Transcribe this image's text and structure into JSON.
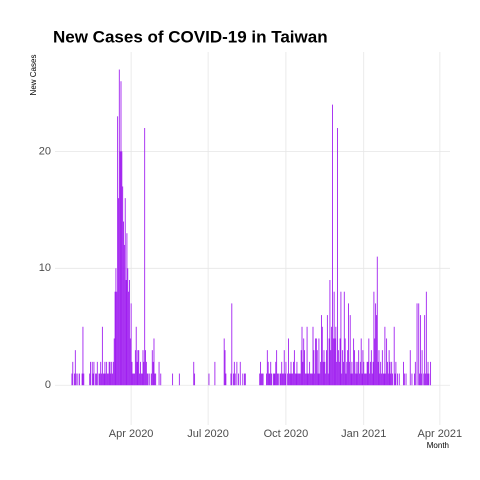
{
  "chart_data": {
    "type": "bar",
    "title": "New Cases of COVID-19 in Taiwan",
    "y_label": "New Cases",
    "x_label": "Month",
    "color": "#a020f0",
    "grid": true,
    "values": [
      0,
      1,
      2,
      0,
      1,
      3,
      1,
      0,
      1,
      0,
      1,
      0,
      0,
      1,
      5,
      1,
      0,
      0,
      0,
      0,
      0,
      0,
      1,
      2,
      0,
      2,
      1,
      2,
      0,
      1,
      1,
      2,
      0,
      1,
      1,
      2,
      1,
      5,
      1,
      1,
      2,
      1,
      2,
      1,
      1,
      2,
      2,
      1,
      2,
      1,
      2,
      4,
      8,
      10,
      8,
      23,
      16,
      27,
      20,
      26,
      20,
      17,
      14,
      12,
      16,
      9,
      13,
      10,
      8,
      9,
      4,
      7,
      2,
      1,
      1,
      1,
      3,
      5,
      2,
      3,
      3,
      1,
      2,
      1,
      1,
      3,
      2,
      22,
      3,
      2,
      1,
      1,
      0,
      1,
      0,
      1,
      3,
      2,
      4,
      1,
      1,
      0,
      0,
      0,
      2,
      0,
      1,
      0,
      0,
      0,
      0,
      0,
      0,
      0,
      0,
      0,
      0,
      0,
      0,
      0,
      1,
      0,
      0,
      0,
      0,
      0,
      0,
      0,
      1,
      0,
      0,
      0,
      0,
      0,
      0,
      0,
      0,
      0,
      0,
      0,
      0,
      0,
      0,
      0,
      0,
      2,
      1,
      0,
      0,
      0,
      0,
      0,
      0,
      0,
      0,
      0,
      0,
      0,
      0,
      0,
      0,
      0,
      0,
      1,
      0,
      0,
      0,
      0,
      0,
      0,
      2,
      0,
      0,
      0,
      0,
      0,
      0,
      0,
      0,
      0,
      0,
      4,
      3,
      1,
      0,
      0,
      0,
      0,
      0,
      1,
      7,
      0,
      1,
      2,
      1,
      0,
      2,
      0,
      1,
      0,
      2,
      0,
      0,
      1,
      0,
      1,
      1,
      0,
      0,
      0,
      0,
      0,
      0,
      0,
      0,
      0,
      0,
      0,
      0,
      0,
      0,
      0,
      0,
      1,
      2,
      1,
      1,
      1,
      0,
      0,
      0,
      1,
      3,
      2,
      1,
      1,
      2,
      1,
      0,
      1,
      1,
      1,
      2,
      3,
      1,
      1,
      0,
      1,
      1,
      2,
      1,
      1,
      3,
      1,
      2,
      0,
      1,
      4,
      1,
      1,
      2,
      1,
      1,
      2,
      3,
      1,
      1,
      2,
      1,
      1,
      1,
      1,
      3,
      5,
      2,
      4,
      3,
      1,
      1,
      5,
      1,
      1,
      2,
      1,
      1,
      1,
      5,
      3,
      1,
      4,
      4,
      3,
      1,
      4,
      1,
      2,
      6,
      5,
      2,
      3,
      2,
      1,
      3,
      6,
      1,
      4,
      9,
      3,
      5,
      24,
      4,
      8,
      4,
      5,
      2,
      22,
      3,
      2,
      4,
      8,
      1,
      3,
      2,
      8,
      4,
      1,
      2,
      3,
      7,
      2,
      6,
      1,
      2,
      1,
      4,
      3,
      1,
      2,
      1,
      2,
      3,
      1,
      2,
      4,
      1,
      3,
      2,
      1,
      1,
      1,
      2,
      2,
      4,
      1,
      2,
      3,
      1,
      2,
      8,
      4,
      7,
      6,
      11,
      2,
      3,
      1,
      2,
      1,
      3,
      1,
      1,
      5,
      1,
      4,
      2,
      1,
      3,
      2,
      1,
      2,
      1,
      0,
      5,
      1,
      2,
      0,
      1,
      0,
      1,
      0,
      0,
      0,
      0,
      2,
      1,
      0,
      1,
      0,
      0,
      0,
      0,
      3,
      0,
      1,
      0,
      0,
      1,
      2,
      0,
      7,
      0,
      7,
      1,
      6,
      1,
      3,
      0,
      1,
      6,
      1,
      8,
      1,
      2,
      1,
      0,
      2
    ],
    "xlim": [
      -19,
      448
    ],
    "xticks": [
      {
        "value": 71,
        "label": "Apr 2020"
      },
      {
        "value": 162,
        "label": "Jul 2020"
      },
      {
        "value": 254,
        "label": "Oct 2020"
      },
      {
        "value": 346,
        "label": "Jan 2021"
      },
      {
        "value": 436,
        "label": "Apr 2021"
      }
    ],
    "ylim": [
      -3.4,
      28.5
    ],
    "yticks": [
      0,
      10,
      20
    ]
  }
}
